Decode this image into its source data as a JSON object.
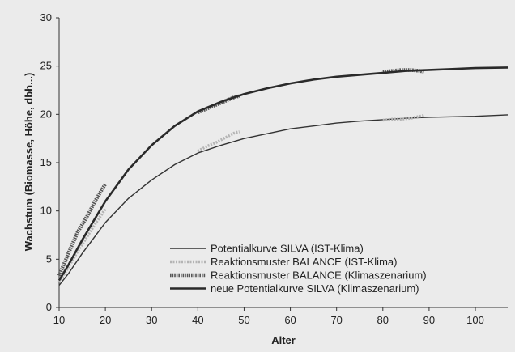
{
  "chart_data": {
    "type": "line",
    "xlabel": "Alter",
    "ylabel": "Wachstum (Biomasse, Höhe, dbh...)",
    "xlim": [
      10,
      107
    ],
    "ylim": [
      0,
      30
    ],
    "x_ticks": [
      "10",
      "20",
      "30",
      "40",
      "50",
      "60",
      "70",
      "80",
      "90",
      "100"
    ],
    "y_ticks": [
      "0",
      "5",
      "10",
      "15",
      "20",
      "25",
      "30"
    ],
    "grid": false,
    "legend_position": "bottom-center",
    "series": [
      {
        "name": "Potentialkurve SILVA (IST-Klima)",
        "style": "thin",
        "color": "#333333",
        "x": [
          10,
          12,
          15,
          20,
          25,
          30,
          35,
          40,
          45,
          50,
          55,
          60,
          65,
          70,
          75,
          80,
          85,
          90,
          95,
          100,
          107
        ],
        "y": [
          2.3,
          3.5,
          5.6,
          8.8,
          11.3,
          13.2,
          14.8,
          16.0,
          16.8,
          17.5,
          18.0,
          18.5,
          18.8,
          19.1,
          19.3,
          19.45,
          19.6,
          19.7,
          19.75,
          19.8,
          19.95
        ]
      },
      {
        "name": "Reaktionsmuster BALANCE (IST-Klima)",
        "style": "light-dotted",
        "color": "#b4b4b4",
        "segments": [
          {
            "x": [
              10,
              12,
              14,
              16,
              18,
              20
            ],
            "y": [
              2.6,
              4.2,
              5.8,
              7.3,
              8.8,
              10.2
            ]
          },
          {
            "x": [
              40,
              42,
              44,
              46,
              48,
              49
            ],
            "y": [
              16.2,
              16.7,
              17.1,
              17.6,
              18.1,
              18.2
            ]
          },
          {
            "x": [
              80,
              82,
              84,
              86,
              88,
              89
            ],
            "y": [
              19.4,
              19.5,
              19.5,
              19.6,
              19.8,
              19.9
            ]
          }
        ]
      },
      {
        "name": "Reaktionsmuster BALANCE (Klimaszenarium)",
        "style": "dark-hatched",
        "color": "#555555",
        "segments": [
          {
            "x": [
              10,
              12,
              14,
              16,
              18,
              20
            ],
            "y": [
              3.3,
              5.6,
              7.8,
              9.4,
              11.2,
              12.8
            ]
          },
          {
            "x": [
              40,
              42,
              44,
              46,
              48,
              49
            ],
            "y": [
              20.2,
              20.6,
              21.0,
              21.4,
              21.8,
              21.9
            ]
          },
          {
            "x": [
              80,
              82,
              84,
              86,
              88,
              89
            ],
            "y": [
              24.4,
              24.5,
              24.6,
              24.6,
              24.5,
              24.4
            ]
          }
        ]
      },
      {
        "name": "neue Potentialkurve SILVA (Klimaszenarium)",
        "style": "thick",
        "color": "#2a2a2a",
        "x": [
          10,
          12,
          15,
          20,
          25,
          30,
          35,
          40,
          45,
          50,
          55,
          60,
          65,
          70,
          75,
          80,
          85,
          90,
          95,
          100,
          107
        ],
        "y": [
          2.8,
          4.4,
          7.0,
          11.0,
          14.3,
          16.8,
          18.8,
          20.3,
          21.3,
          22.1,
          22.7,
          23.2,
          23.6,
          23.9,
          24.1,
          24.3,
          24.5,
          24.6,
          24.7,
          24.8,
          24.85
        ]
      }
    ]
  }
}
